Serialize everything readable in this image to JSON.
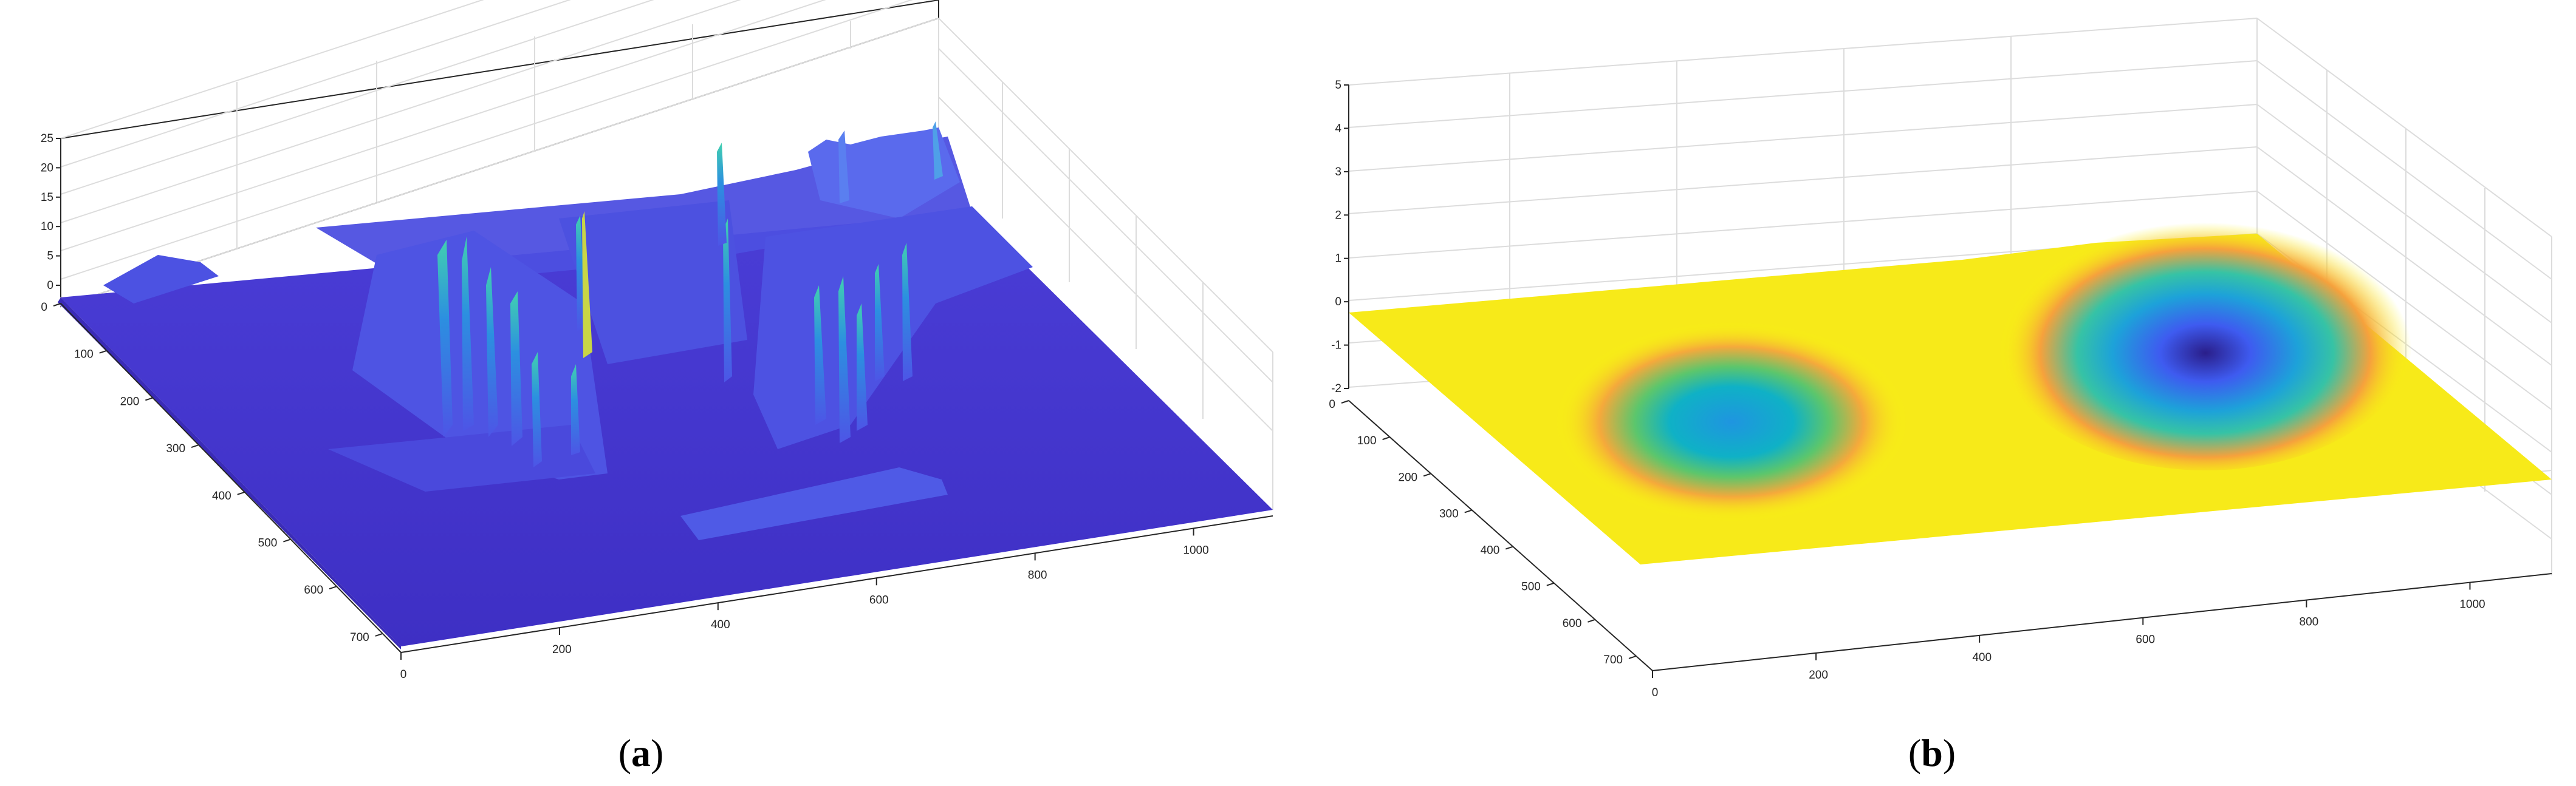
{
  "chart_data": [
    {
      "type": "surface",
      "caption": "a",
      "surface_description": "3D surface of urban elevation model, mostly flat blue base with tall spiky building structures",
      "colormap": "parula",
      "x_ticks": [
        0,
        100,
        200,
        300,
        400,
        500,
        600,
        700
      ],
      "y_ticks": [
        0,
        200,
        400,
        600,
        800,
        1000
      ],
      "z_ticks": [
        0,
        5,
        10,
        15,
        20,
        25
      ],
      "xlim": [
        0,
        740
      ],
      "ylim": [
        0,
        1100
      ],
      "zlim": [
        0,
        25
      ],
      "grid": true
    },
    {
      "type": "surface",
      "caption": "b",
      "surface_description": "3D smooth surface, near-flat yellow plane with two depressions (one shallow near x≈250,y≈250 and one deep near x≈150,y≈800)",
      "colormap": "parula",
      "x_ticks": [
        0,
        100,
        200,
        300,
        400,
        500,
        600,
        700
      ],
      "y_ticks": [
        0,
        200,
        400,
        600,
        800,
        1000
      ],
      "z_ticks": [
        -2,
        -1,
        0,
        1,
        2,
        3,
        4,
        5
      ],
      "xlim": [
        0,
        740
      ],
      "ylim": [
        0,
        1100
      ],
      "zlim": [
        -2,
        5
      ],
      "grid": true
    }
  ],
  "colors": {
    "surface_low": "#3e26a8",
    "surface_mid": "#2ab0d8",
    "surface_high": "#f9fb0e"
  }
}
